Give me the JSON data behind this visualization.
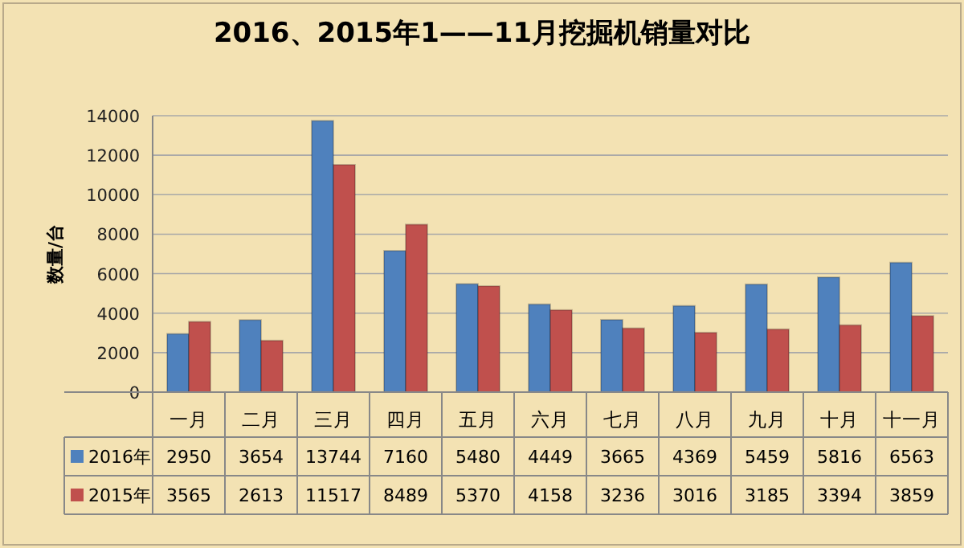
{
  "chart_data": {
    "type": "bar",
    "title": "2016、2015年1——11月挖掘机销量对比",
    "ylabel": "数量/台",
    "categories": [
      "一月",
      "二月",
      "三月",
      "四月",
      "五月",
      "六月",
      "七月",
      "八月",
      "九月",
      "十月",
      "十一月"
    ],
    "series": [
      {
        "name": "2016年",
        "color": "#4f81bd",
        "values": [
          2950,
          3654,
          13744,
          7160,
          5480,
          4449,
          3665,
          4369,
          5459,
          5816,
          6563
        ]
      },
      {
        "name": "2015年",
        "color": "#c0504d",
        "values": [
          3565,
          2613,
          11517,
          8489,
          5370,
          4158,
          3236,
          3016,
          3185,
          3394,
          3859
        ]
      }
    ],
    "ylim": [
      0,
      14000
    ],
    "yticks": [
      0,
      2000,
      4000,
      6000,
      8000,
      10000,
      12000,
      14000
    ],
    "grid": "y",
    "legend": "bottom",
    "data_labels": true
  }
}
